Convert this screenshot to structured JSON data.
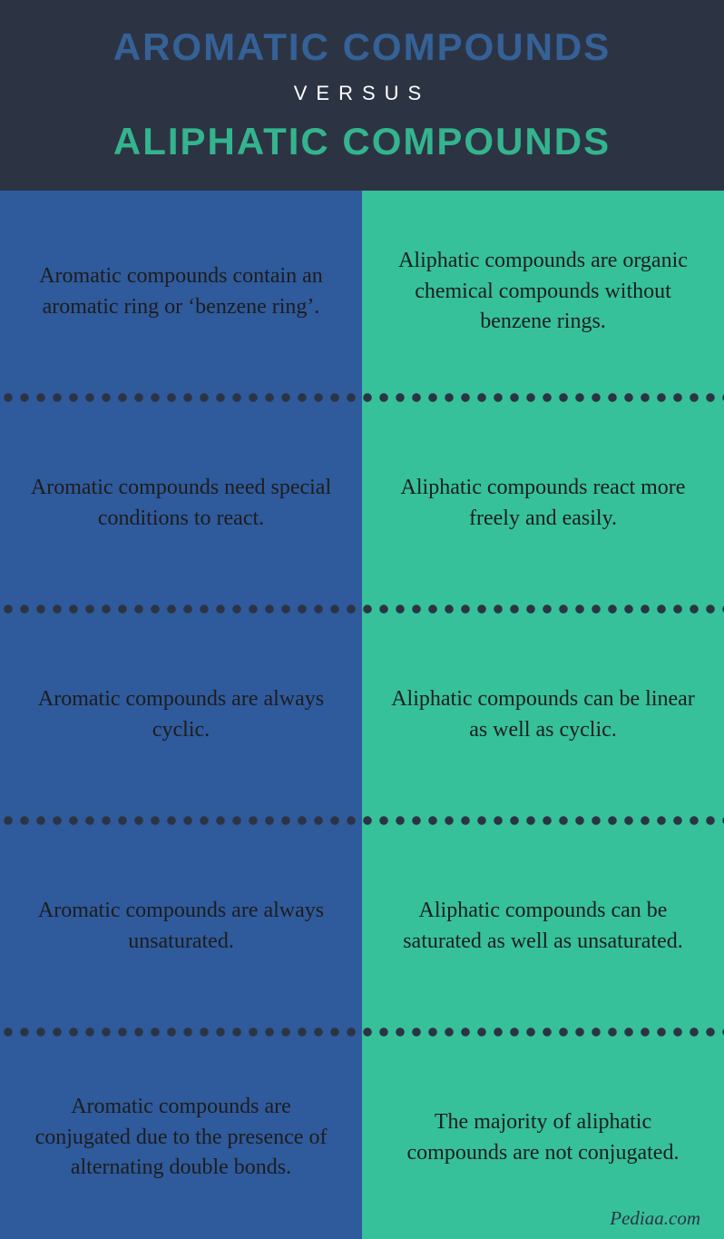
{
  "header": {
    "top": "AROMATIC COMPOUNDS",
    "versus": "VERSUS",
    "bottom": "ALIPHATIC COMPOUNDS",
    "bg_color": "#2c3444",
    "top_color": "#356197",
    "versus_color": "#ffffff",
    "bottom_color": "#34b48e",
    "top_fontsize": 42,
    "versus_fontsize": 22,
    "bottom_fontsize": 42
  },
  "columns": {
    "left": {
      "bg_color": "#2f5a9c",
      "text_color": "#1d1d1d",
      "fontsize": 24
    },
    "right": {
      "bg_color": "#36c19a",
      "text_color": "#1d1d1d",
      "fontsize": 24
    }
  },
  "divider": {
    "color": "#2c3444",
    "dot_size": 10,
    "gap": 8
  },
  "rows": [
    {
      "left": "Aromatic compounds contain an aromatic ring or ‘benzene ring’.",
      "right": "Aliphatic compounds are organic chemical compounds without benzene rings."
    },
    {
      "left": "Aromatic compounds need special conditions to react.",
      "right": "Aliphatic compounds react more freely and easily."
    },
    {
      "left": "Aromatic compounds are always cyclic.",
      "right": "Aliphatic compounds can be linear as well as cyclic."
    },
    {
      "left": "Aromatic compounds are always unsaturated.",
      "right": "Aliphatic compounds can be saturated as well as unsaturated."
    },
    {
      "left": "Aromatic compounds are conjugated due to the presence of alternating double bonds.",
      "right": "The majority of aliphatic compounds are not conjugated."
    }
  ],
  "attribution": {
    "text": "Pediaa.com",
    "color": "#2c3444",
    "fontsize": 21
  }
}
